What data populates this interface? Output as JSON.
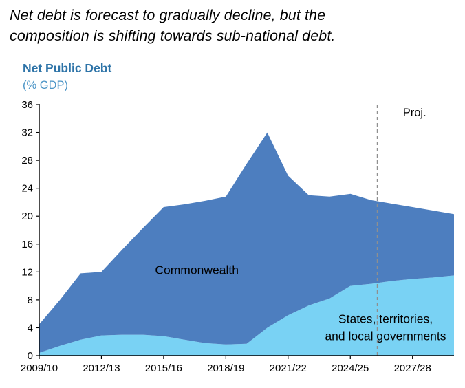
{
  "header": {
    "title_line1": "Net debt is forecast to gradually decline, but the",
    "title_line2": "composition is shifting towards sub-national debt.",
    "chart_title": "Net Public Debt",
    "chart_subtitle": "(% GDP)"
  },
  "colors": {
    "commonwealth": "#4d7ebf",
    "states": "#79d2f4",
    "chart_title": "#2e74a8",
    "chart_subtitle": "#4a94c6",
    "proj_line": "#8f8f8f",
    "axis": "#000000",
    "text": "#000000"
  },
  "chart_data": {
    "type": "area",
    "stacked": true,
    "title": "Net Public Debt",
    "ylabel": "(% GDP)",
    "ylim": [
      0,
      36
    ],
    "y_tick_step": 4,
    "grid": false,
    "legend_position": "none",
    "x": [
      "2009/10",
      "2010/11",
      "2011/12",
      "2012/13",
      "2013/14",
      "2014/15",
      "2015/16",
      "2016/17",
      "2017/18",
      "2018/19",
      "2019/20",
      "2020/21",
      "2021/22",
      "2022/23",
      "2023/24",
      "2024/25",
      "2025/26",
      "2026/27",
      "2027/28",
      "2028/29",
      "2029/30"
    ],
    "x_tick_indices": [
      0,
      3,
      6,
      9,
      12,
      15,
      18
    ],
    "x_tick_labels": [
      "2009/10",
      "2012/13",
      "2015/16",
      "2018/19",
      "2021/22",
      "2024/25",
      "2027/28"
    ],
    "series": [
      {
        "id": "states",
        "name": "States, territories, and local governments",
        "color_key": "states",
        "values": [
          0.4,
          1.4,
          2.3,
          2.9,
          3.0,
          3.0,
          2.8,
          2.3,
          1.8,
          1.6,
          1.7,
          4.0,
          5.8,
          7.2,
          8.2,
          10.0,
          10.3,
          10.7,
          11.0,
          11.2,
          11.5
        ]
      },
      {
        "id": "commonwealth",
        "name": "Commonwealth",
        "color_key": "commonwealth",
        "values": [
          4.1,
          6.6,
          9.5,
          9.1,
          12.2,
          15.3,
          18.5,
          19.4,
          20.4,
          21.2,
          25.8,
          28.0,
          20.0,
          15.8,
          14.6,
          13.2,
          12.0,
          11.1,
          10.3,
          9.6,
          8.8
        ]
      }
    ],
    "total_net_debt": [
      4.5,
      8.0,
      11.8,
      12.0,
      15.2,
      18.3,
      21.3,
      21.7,
      22.2,
      22.8,
      27.5,
      32.0,
      25.8,
      23.0,
      22.8,
      23.2,
      22.3,
      21.8,
      21.3,
      20.8,
      20.3
    ],
    "proj_line_index": 16.3,
    "annotations": [
      {
        "id": "proj-label",
        "text": "Proj.",
        "x_index": 18.1,
        "value": 34.3,
        "size": 16.5
      },
      {
        "id": "commonwealth-area-label",
        "text": "Commonwealth",
        "x_index": 7.6,
        "value": 11.7,
        "size": 17.5
      },
      {
        "id": "states-area-label-line1",
        "text": "States, territories,",
        "x_index": 16.7,
        "value": 4.7,
        "size": 17.5
      },
      {
        "id": "states-area-label-line2",
        "text": "and local governments",
        "x_index": 16.7,
        "value": 2.2,
        "size": 17.5
      }
    ]
  }
}
